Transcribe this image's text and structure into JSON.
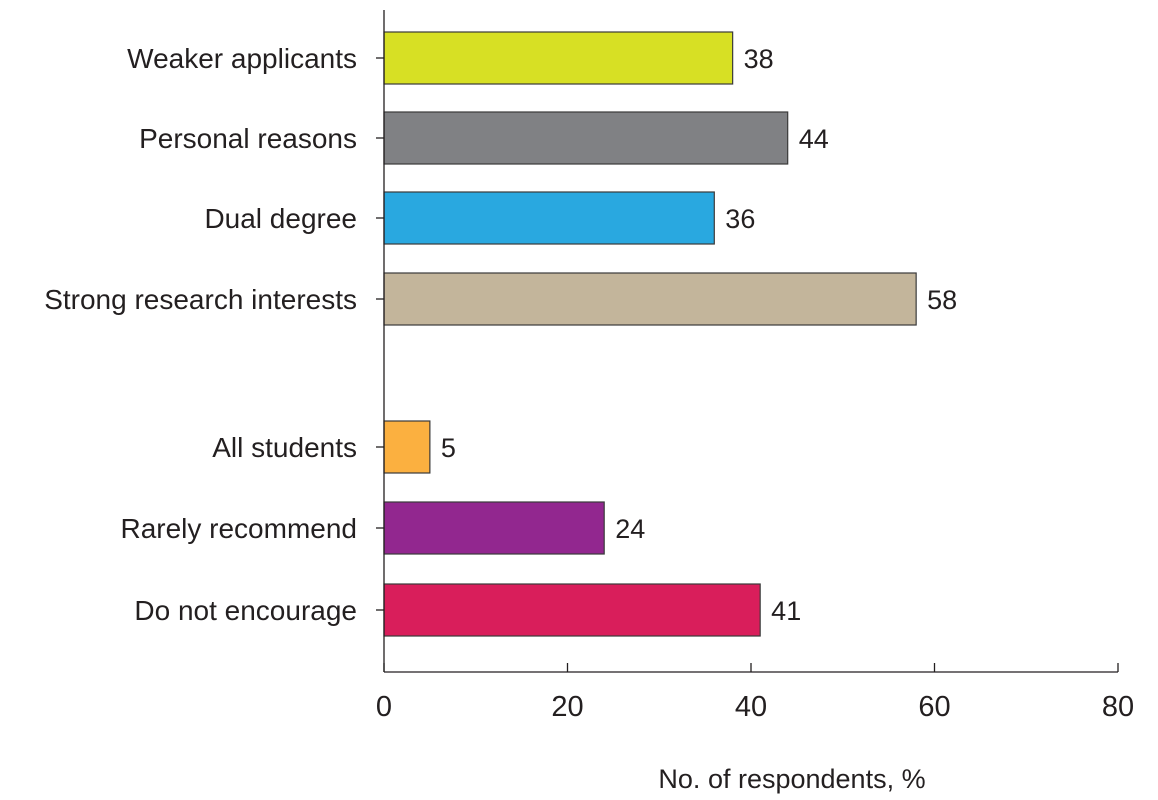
{
  "chart_data": {
    "type": "bar",
    "orientation": "horizontal",
    "categories": [
      "Weaker applicants",
      "Personal reasons",
      "Dual degree",
      "Strong research interests",
      "All students",
      "Rarely recommend",
      "Do not encourage"
    ],
    "values": [
      38,
      44,
      36,
      58,
      5,
      24,
      41
    ],
    "colors": [
      "#d7e024",
      "#808184",
      "#29a8e0",
      "#c3b59b",
      "#fbb040",
      "#92278f",
      "#d91e5b"
    ],
    "groups": [
      [
        "Weaker applicants",
        "Personal reasons",
        "Dual degree",
        "Strong research interests"
      ],
      [
        "All students",
        "Rarely recommend",
        "Do not encourage"
      ]
    ],
    "data_labels": [
      "38",
      "44",
      "36",
      "58",
      "5",
      "24",
      "41"
    ],
    "xlabel": "No. of respondents, %",
    "ylabel": "",
    "title": "",
    "xlim": [
      0,
      80
    ],
    "xticks": [
      "0",
      "20",
      "40",
      "60",
      "80"
    ],
    "grid": false,
    "legend": "none"
  }
}
